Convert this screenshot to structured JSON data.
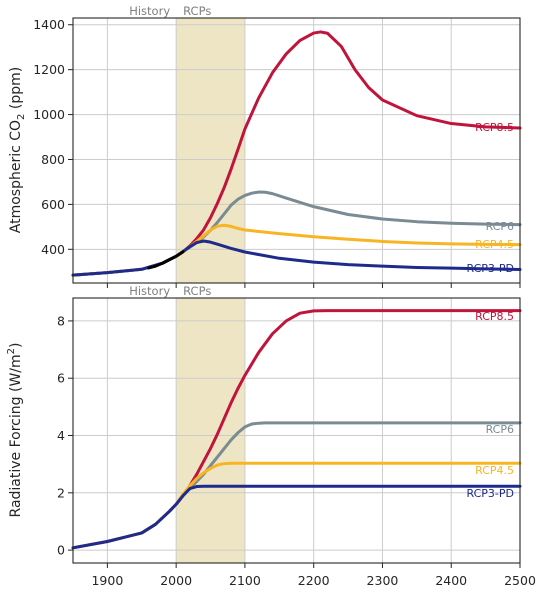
{
  "chart_data": [
    {
      "type": "line",
      "ylabel_main": "Atmospheric CO",
      "ylabel_sub": "2",
      "ylabel_tail": " (ppm)",
      "xlim": [
        1850,
        2500
      ],
      "ylim": [
        250,
        1430
      ],
      "yticks": [
        400,
        600,
        800,
        1000,
        1200,
        1400
      ],
      "xticks": [
        1900,
        2000,
        2100,
        2200,
        2300,
        2400,
        2500
      ],
      "shaded_region": [
        2000,
        2100
      ],
      "shade_color": "#e8dcb0",
      "era_labels": [
        "History",
        "RCPs"
      ],
      "grid": true,
      "series": [
        {
          "name": "RCP8.5",
          "color": "#c0143c",
          "x": [
            1850,
            1900,
            1950,
            1980,
            2000,
            2010,
            2020,
            2030,
            2040,
            2050,
            2060,
            2070,
            2080,
            2090,
            2100,
            2120,
            2140,
            2160,
            2180,
            2200,
            2210,
            2220,
            2240,
            2260,
            2280,
            2300,
            2350,
            2400,
            2450,
            2500
          ],
          "y": [
            285,
            296,
            311,
            338,
            369,
            389,
            415,
            448,
            487,
            541,
            605,
            676,
            758,
            846,
            936,
            1074,
            1186,
            1270,
            1330,
            1363,
            1368,
            1362,
            1304,
            1200,
            1120,
            1065,
            995,
            960,
            945,
            940
          ]
        },
        {
          "name": "RCP6",
          "color": "#7a8b94",
          "x": [
            1850,
            1900,
            1950,
            1980,
            2000,
            2010,
            2020,
            2030,
            2040,
            2050,
            2060,
            2070,
            2080,
            2090,
            2100,
            2110,
            2120,
            2130,
            2140,
            2160,
            2200,
            2250,
            2300,
            2350,
            2400,
            2450,
            2500
          ],
          "y": [
            285,
            296,
            311,
            338,
            369,
            389,
            409,
            431,
            456,
            485,
            520,
            558,
            597,
            623,
            640,
            650,
            655,
            654,
            648,
            628,
            590,
            555,
            535,
            523,
            516,
            512,
            510
          ]
        },
        {
          "name": "RCP4.5",
          "color": "#f8b523",
          "x": [
            1850,
            1900,
            1950,
            1980,
            2000,
            2010,
            2020,
            2030,
            2040,
            2050,
            2060,
            2070,
            2080,
            2090,
            2100,
            2150,
            2200,
            2250,
            2300,
            2350,
            2400,
            2450,
            2500
          ],
          "y": [
            285,
            296,
            311,
            338,
            369,
            389,
            412,
            435,
            461,
            486,
            503,
            507,
            502,
            493,
            486,
            470,
            456,
            445,
            435,
            428,
            424,
            422,
            421
          ]
        },
        {
          "name": "RCP3-PD",
          "color": "#1e2a8c",
          "x": [
            1850,
            1900,
            1950,
            1980,
            2000,
            2010,
            2020,
            2030,
            2040,
            2050,
            2060,
            2080,
            2100,
            2150,
            2200,
            2250,
            2300,
            2350,
            2400,
            2450,
            2500
          ],
          "y": [
            285,
            296,
            311,
            338,
            369,
            390,
            412,
            430,
            437,
            432,
            423,
            404,
            388,
            360,
            343,
            332,
            325,
            319,
            316,
            313,
            310
          ]
        },
        {
          "name": "History",
          "color": "#000000",
          "x": [
            1960,
            1970,
            1980,
            1990,
            2000,
            2005,
            2010
          ],
          "y": [
            317,
            325,
            338,
            354,
            369,
            379,
            389
          ]
        }
      ]
    },
    {
      "type": "line",
      "ylabel_main": "Radiative Forcing (W/m",
      "ylabel_sup": "2",
      "ylabel_tail": ")",
      "xlim": [
        1850,
        2500
      ],
      "ylim": [
        -0.45,
        8.8
      ],
      "yticks": [
        0,
        2,
        4,
        6,
        8
      ],
      "xticks": [
        1900,
        2000,
        2100,
        2200,
        2300,
        2400,
        2500
      ],
      "xtick_labels": [
        "1900",
        "2000",
        "2100",
        "2200",
        "2300",
        "2400",
        "2500"
      ],
      "shaded_region": [
        2000,
        2100
      ],
      "shade_color": "#e8dcb0",
      "era_labels": [
        "History",
        "RCPs"
      ],
      "grid": true,
      "series": [
        {
          "name": "RCP8.5",
          "color": "#c0143c",
          "x": [
            1850,
            1900,
            1950,
            1970,
            1990,
            2000,
            2010,
            2020,
            2030,
            2040,
            2050,
            2060,
            2070,
            2080,
            2090,
            2100,
            2120,
            2140,
            2160,
            2180,
            2200,
            2220,
            2250,
            2300,
            2400,
            2500
          ],
          "y": [
            0.08,
            0.3,
            0.6,
            0.9,
            1.35,
            1.6,
            1.9,
            2.25,
            2.65,
            3.1,
            3.55,
            4.05,
            4.6,
            5.15,
            5.65,
            6.1,
            6.9,
            7.55,
            8.0,
            8.27,
            8.35,
            8.36,
            8.36,
            8.36,
            8.36,
            8.36
          ]
        },
        {
          "name": "RCP6",
          "color": "#7a8b94",
          "x": [
            1850,
            1900,
            1950,
            1970,
            1990,
            2000,
            2010,
            2020,
            2030,
            2040,
            2050,
            2060,
            2070,
            2080,
            2090,
            2100,
            2110,
            2120,
            2130,
            2150,
            2200,
            2300,
            2400,
            2500
          ],
          "y": [
            0.08,
            0.3,
            0.6,
            0.9,
            1.35,
            1.6,
            1.9,
            2.15,
            2.4,
            2.65,
            2.95,
            3.25,
            3.55,
            3.85,
            4.1,
            4.3,
            4.4,
            4.43,
            4.44,
            4.44,
            4.44,
            4.44,
            4.44,
            4.44
          ]
        },
        {
          "name": "RCP4.5",
          "color": "#f8b523",
          "x": [
            1850,
            1900,
            1950,
            1970,
            1990,
            2000,
            2010,
            2020,
            2030,
            2040,
            2050,
            2060,
            2070,
            2080,
            2100,
            2200,
            2300,
            2400,
            2500
          ],
          "y": [
            0.08,
            0.3,
            0.6,
            0.9,
            1.35,
            1.6,
            1.95,
            2.25,
            2.5,
            2.7,
            2.85,
            2.97,
            3.02,
            3.03,
            3.03,
            3.03,
            3.03,
            3.03,
            3.03
          ]
        },
        {
          "name": "RCP3-PD",
          "color": "#1e2a8c",
          "x": [
            1850,
            1900,
            1950,
            1970,
            1990,
            2000,
            2010,
            2020,
            2030,
            2040,
            2050,
            2100,
            2200,
            2300,
            2400,
            2500
          ],
          "y": [
            0.08,
            0.3,
            0.6,
            0.9,
            1.35,
            1.6,
            1.9,
            2.15,
            2.22,
            2.23,
            2.23,
            2.23,
            2.23,
            2.23,
            2.23,
            2.23
          ]
        }
      ]
    }
  ]
}
